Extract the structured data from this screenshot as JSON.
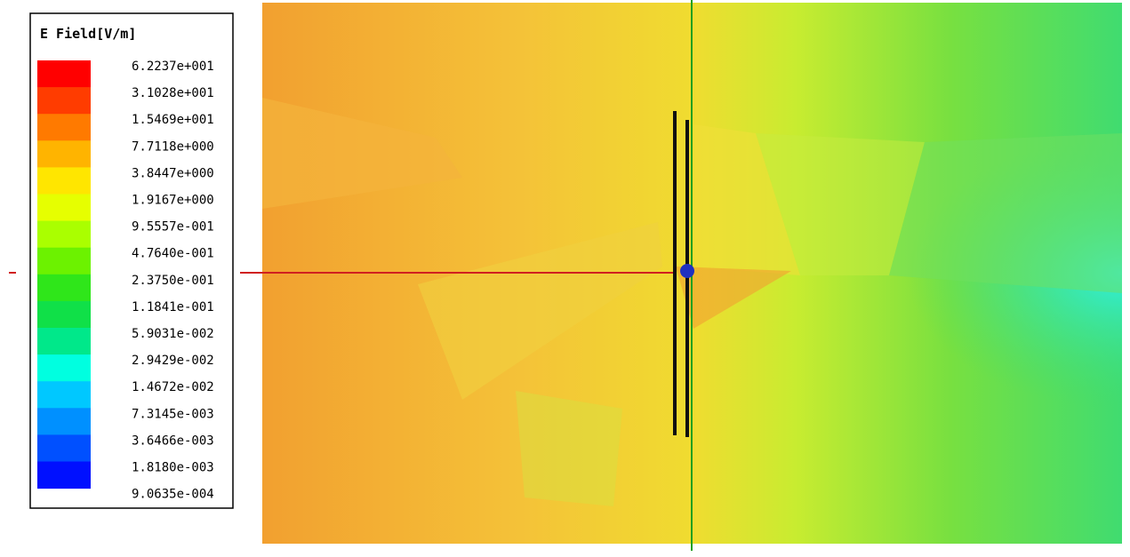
{
  "legend": {
    "title": "E Field[V/m]",
    "labels": [
      "6.2237e+001",
      "3.1028e+001",
      "1.5469e+001",
      "7.7118e+000",
      "3.8447e+000",
      "1.9167e+000",
      "9.5557e-001",
      "4.7640e-001",
      "2.3750e-001",
      "1.1841e-001",
      "5.9031e-002",
      "2.9429e-002",
      "1.4672e-002",
      "7.3145e-003",
      "3.6466e-003",
      "1.8180e-003",
      "9.0635e-004"
    ],
    "colors": [
      "#ff0000",
      "#ff3c00",
      "#ff7a00",
      "#ffb400",
      "#ffe600",
      "#e6ff00",
      "#aaff00",
      "#6cf200",
      "#2fe61a",
      "#10e048",
      "#00e88a",
      "#00ffe0",
      "#00c8ff",
      "#0090ff",
      "#0050ff",
      "#0010ff"
    ]
  }
}
